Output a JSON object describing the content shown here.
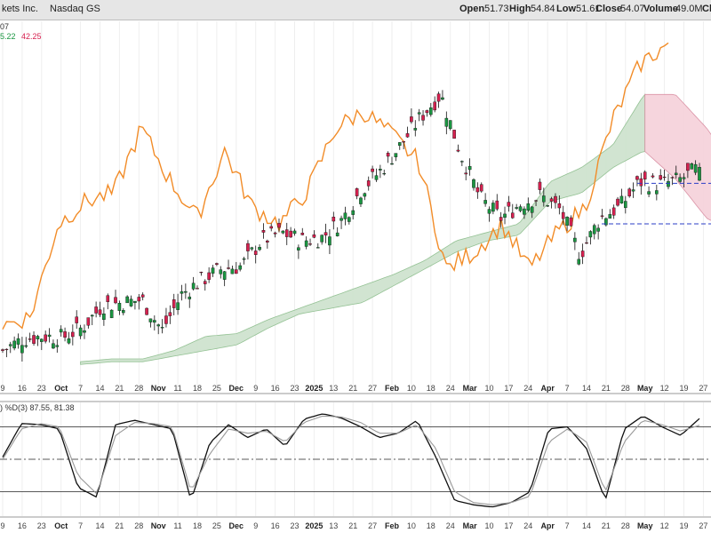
{
  "header": {
    "company": "kets Inc.",
    "exchange": "Nasdaq GS",
    "open_label": "Open",
    "open": "51.73",
    "high_label": "High",
    "high": "54.84",
    "low_label": "Low",
    "low": "51.61",
    "close_label": "Close",
    "close": "54.07",
    "volume_label": "Volume",
    "volume": "49.0M",
    "cut_label": "Cl"
  },
  "price_legend": {
    "line1": "07",
    "value_green": "5.22",
    "value_red": "42.25"
  },
  "stoch_legend": {
    "label": ") %D(3) 87.55, 81.38"
  },
  "colors": {
    "up": "#1a9641",
    "down": "#d6204f",
    "chikou": "#f28c28",
    "cloud_bull": "#cfe3cf",
    "cloud_bear": "#f6d3dc",
    "k_line": "#111111",
    "d_line": "#999999",
    "dash": "#2a3cc7"
  },
  "x_axis_ticks": [
    "9",
    "16",
    "23",
    "Oct",
    "7",
    "14",
    "21",
    "28",
    "Nov",
    "11",
    "18",
    "25",
    "Dec",
    "9",
    "16",
    "23",
    "2025",
    "13",
    "21",
    "27",
    "Feb",
    "10",
    "18",
    "24",
    "Mar",
    "10",
    "17",
    "24",
    "Apr",
    "7",
    "14",
    "21",
    "28",
    "May",
    "12",
    "19",
    "27"
  ],
  "x_axis_bold": [
    "Oct",
    "Nov",
    "Dec",
    "2025",
    "Feb",
    "Mar",
    "Apr",
    "May"
  ],
  "chart_data": [
    {
      "type": "candlestick",
      "title": "kets Inc. Nasdaq GS",
      "x": [
        "Sep 9",
        "Sep 16",
        "Sep 23",
        "Oct 1",
        "Oct 7",
        "Oct 14",
        "Oct 21",
        "Oct 28",
        "Nov 1",
        "Nov 11",
        "Nov 18",
        "Nov 25",
        "Dec 2",
        "Dec 9",
        "Dec 16",
        "Dec 23",
        "2025",
        "Jan 13",
        "Jan 21",
        "Jan 27",
        "Feb 3",
        "Feb 10",
        "Feb 18",
        "Feb 24",
        "Mar 3",
        "Mar 10",
        "Mar 17",
        "Mar 24",
        "Apr 1",
        "Apr 7",
        "Apr 14",
        "Apr 21",
        "Apr 28",
        "May 1",
        "May 5",
        "May 8"
      ],
      "close": [
        21.5,
        23.5,
        24.0,
        23.8,
        25.5,
        29.5,
        30.0,
        30.5,
        25.0,
        31.5,
        34.0,
        36.0,
        36.5,
        41.0,
        42.5,
        41.0,
        41.5,
        44.5,
        50.0,
        53.5,
        58.0,
        63.0,
        67.0,
        56.5,
        48.5,
        45.0,
        47.5,
        49.0,
        46.5,
        38.5,
        45.0,
        47.0,
        51.5,
        51.0,
        51.8,
        54.07
      ],
      "chikou": [
        26.0,
        27.5,
        44.0,
        48.0,
        49.5,
        61.0,
        52.0,
        45.0,
        57.0,
        47.0,
        44.0,
        50.0,
        61.0,
        64.0,
        60.0,
        55.0,
        36.0,
        39.0,
        44.0,
        36.0,
        42.5,
        47.0,
        62.5,
        72.5,
        76.0
      ],
      "cloud_top": [
        19.5,
        20.0,
        20.0,
        21.5,
        24.0,
        24.5,
        27.0,
        29.0,
        31.0,
        33.0,
        35.0,
        37.5,
        41.0,
        42.5,
        44.0,
        51.5,
        54.0,
        58.0,
        67.0,
        67.0,
        61.0,
        53.0,
        44.0,
        42.5
      ],
      "cloud_bottom": [
        19.0,
        19.5,
        19.5,
        20.5,
        21.5,
        22.5,
        25.5,
        28.0,
        29.0,
        30.0,
        33.0,
        36.0,
        39.0,
        41.0,
        42.0,
        48.0,
        49.5,
        54.0,
        57.0,
        52.0,
        45.0,
        42.0,
        40.0,
        41.0
      ],
      "ylim": [
        14,
        80
      ],
      "support_levels": [
        51.2,
        44.0
      ]
    },
    {
      "type": "line",
      "title": ") %D(3) 87.55, 81.38",
      "series": [
        {
          "name": "%K",
          "values": [
            52,
            83,
            82,
            78,
            24,
            15,
            82,
            86,
            82,
            78,
            12,
            65,
            82,
            70,
            78,
            62,
            87,
            92,
            88,
            80,
            70,
            74,
            86,
            52,
            12,
            8,
            6,
            10,
            20,
            78,
            80,
            60,
            12,
            78,
            90,
            80,
            72,
            87.55
          ]
        },
        {
          "name": "%D",
          "values": [
            50,
            78,
            83,
            80,
            35,
            18,
            72,
            84,
            83,
            80,
            20,
            55,
            78,
            74,
            76,
            66,
            84,
            90,
            89,
            84,
            74,
            74,
            82,
            60,
            20,
            10,
            8,
            10,
            16,
            66,
            78,
            66,
            20,
            66,
            86,
            82,
            76,
            81.38
          ]
        }
      ],
      "ylim": [
        0,
        100
      ],
      "levels": [
        80,
        50,
        20
      ]
    }
  ]
}
